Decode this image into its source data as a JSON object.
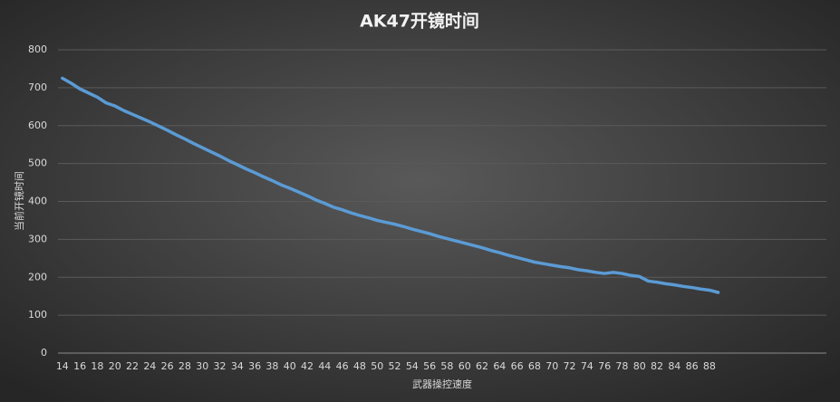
{
  "chart_data": {
    "type": "line",
    "title": "AK47开镜时间",
    "x_label": "武器操控速度",
    "y_label": "当前开镜时间",
    "categories": [
      "14",
      null,
      "16",
      null,
      "18",
      null,
      "20",
      null,
      "22",
      null,
      "24",
      null,
      "26",
      null,
      "28",
      null,
      "30",
      null,
      "32",
      null,
      "34",
      null,
      "36",
      null,
      "38",
      null,
      "40",
      null,
      "42",
      null,
      "44",
      null,
      "46",
      null,
      "48",
      null,
      "50",
      null,
      "52",
      null,
      "54",
      null,
      "56",
      null,
      "58",
      null,
      "60",
      null,
      "62",
      null,
      "64",
      null,
      "66",
      null,
      "68",
      null,
      "70",
      null,
      "72",
      null,
      "74",
      null,
      "76",
      null,
      "78",
      null,
      "80",
      null,
      "82",
      null,
      "84",
      null,
      "86",
      null,
      "88",
      null
    ],
    "series": [
      {
        "color": "#5b9bd5",
        "values": [
          725,
          712,
          697,
          686,
          675,
          660,
          652,
          640,
          630,
          620,
          610,
          599,
          588,
          576,
          565,
          553,
          542,
          531,
          520,
          508,
          497,
          486,
          476,
          465,
          455,
          444,
          435,
          425,
          415,
          404,
          395,
          385,
          378,
          370,
          363,
          357,
          350,
          345,
          340,
          334,
          327,
          321,
          315,
          308,
          302,
          296,
          290,
          284,
          278,
          271,
          265,
          258,
          252,
          246,
          240,
          236,
          232,
          228,
          225,
          220,
          217,
          213,
          210,
          213,
          210,
          205,
          202,
          190,
          187,
          183,
          180,
          176,
          173,
          169,
          166,
          160
        ]
      }
    ],
    "ylim": [
      0,
      800
    ],
    "yticks": [
      0,
      100,
      200,
      300,
      400,
      500,
      600,
      700,
      800
    ],
    "grid": true
  }
}
